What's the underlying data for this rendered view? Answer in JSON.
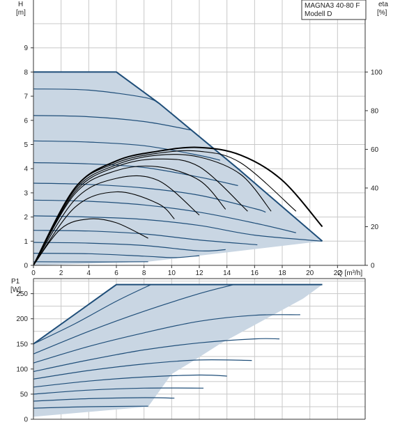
{
  "chart_data": [
    {
      "type": "line",
      "title": "MAGNA3 40-80 F",
      "subtitle": "Modell D",
      "ylabel_left": "H",
      "ylabel_left_unit": "[m]",
      "ylabel_right": "eta",
      "ylabel_right_unit": "[%]",
      "xlabel": "Q [m³/h]",
      "xlim": [
        0,
        24
      ],
      "ylim": [
        0,
        10
      ],
      "y2lim": [
        0,
        125
      ],
      "x_ticks": [
        "0",
        "2",
        "4",
        "6",
        "8",
        "10",
        "12",
        "14",
        "16",
        "18",
        "20",
        "22"
      ],
      "y_ticks": [
        "0",
        "1",
        "2",
        "3",
        "4",
        "5",
        "6",
        "7",
        "8",
        "9"
      ],
      "y2_ticks": [
        "0",
        "20",
        "40",
        "60",
        "80",
        "100"
      ],
      "grid": true,
      "envelope": {
        "x": [
          0,
          6,
          9.1,
          14.8,
          20.9,
          8.3,
          0
        ],
        "y": [
          8,
          8,
          6.7,
          4.0,
          1.0,
          0.15,
          0
        ]
      },
      "head_curves": [
        {
          "x": [
            0,
            4,
            8,
            9.1
          ],
          "y": [
            7.3,
            7.25,
            6.95,
            6.7
          ]
        },
        {
          "x": [
            0,
            4,
            8,
            11.4
          ],
          "y": [
            6.2,
            6.15,
            5.95,
            5.6
          ]
        },
        {
          "x": [
            0,
            4,
            8,
            12,
            13.5
          ],
          "y": [
            5.15,
            5.1,
            4.95,
            4.55,
            4.35
          ]
        },
        {
          "x": [
            0,
            4,
            8,
            12,
            14.8
          ],
          "y": [
            4.25,
            4.2,
            4.05,
            3.65,
            3.3
          ]
        },
        {
          "x": [
            0,
            4,
            8,
            12,
            16,
            16.8
          ],
          "y": [
            3.4,
            3.35,
            3.2,
            2.9,
            2.35,
            2.2
          ]
        },
        {
          "x": [
            0,
            4,
            8,
            12,
            16,
            19.0
          ],
          "y": [
            2.7,
            2.65,
            2.5,
            2.2,
            1.75,
            1.35
          ]
        },
        {
          "x": [
            0,
            4,
            8,
            12,
            16,
            20.9
          ],
          "y": [
            2.05,
            2.0,
            1.9,
            1.65,
            1.25,
            1.0
          ]
        },
        {
          "x": [
            0,
            4,
            8,
            12,
            16.2
          ],
          "y": [
            1.45,
            1.42,
            1.3,
            1.05,
            0.85
          ]
        },
        {
          "x": [
            0,
            4,
            8,
            12,
            13.9
          ],
          "y": [
            0.95,
            0.92,
            0.82,
            0.6,
            0.65
          ]
        },
        {
          "x": [
            0,
            4,
            8,
            10.2,
            12.0
          ],
          "y": [
            0.5,
            0.48,
            0.38,
            0.32,
            0.4
          ]
        },
        {
          "x": [
            0,
            4,
            8.3
          ],
          "y": [
            0.15,
            0.14,
            0.15
          ]
        }
      ],
      "eta_curves": [
        {
          "x": [
            0,
            2,
            4,
            6,
            8.3
          ],
          "y": [
            0,
            19,
            24,
            22,
            14
          ]
        },
        {
          "x": [
            0,
            3,
            6,
            9,
            10.2
          ],
          "y": [
            0,
            30,
            38,
            32,
            24
          ]
        },
        {
          "x": [
            0,
            3,
            6,
            9,
            12.0
          ],
          "y": [
            0,
            34,
            45,
            44,
            26
          ]
        },
        {
          "x": [
            0,
            3,
            6,
            9,
            12,
            13.9
          ],
          "y": [
            0,
            37,
            49,
            51,
            44,
            29
          ]
        },
        {
          "x": [
            0,
            3,
            6,
            9,
            12,
            15.5
          ],
          "y": [
            0,
            38,
            51,
            55,
            51,
            28
          ]
        },
        {
          "x": [
            0,
            3,
            6,
            9,
            12,
            15,
            17.2
          ],
          "y": [
            0,
            39,
            52,
            57,
            56,
            47,
            28
          ]
        },
        {
          "x": [
            0,
            3,
            6,
            9,
            12,
            15,
            19.0
          ],
          "y": [
            0,
            40,
            53,
            58,
            59,
            53,
            28
          ]
        },
        {
          "x": [
            0,
            3,
            6,
            9,
            12,
            15,
            18,
            20.9
          ],
          "y": [
            0,
            40,
            54,
            59,
            61,
            57,
            44,
            20
          ]
        }
      ]
    },
    {
      "type": "line",
      "ylabel": "P1",
      "ylabel_unit": "[W]",
      "xlim": [
        0,
        24
      ],
      "ylim": [
        0,
        280
      ],
      "y_ticks": [
        "0",
        "50",
        "100",
        "150",
        "200",
        "250"
      ],
      "grid": true,
      "envelope": {
        "x": [
          0,
          6,
          20.9,
          19.5,
          17.5,
          15.5,
          13.5,
          11.5,
          10,
          8.3,
          0
        ],
        "y": [
          150,
          268,
          268,
          240,
          210,
          180,
          150,
          115,
          90,
          25,
          5
        ]
      },
      "power_curves": [
        {
          "x": [
            0,
            3,
            6,
            8.5
          ],
          "y": [
            150,
            190,
            235,
            268
          ]
        },
        {
          "x": [
            0,
            4,
            8,
            12,
            14.5
          ],
          "y": [
            130,
            175,
            215,
            250,
            268
          ]
        },
        {
          "x": [
            0,
            4,
            8,
            12,
            16,
            19.3
          ],
          "y": [
            112,
            145,
            172,
            195,
            207,
            208
          ]
        },
        {
          "x": [
            0,
            4,
            8,
            12,
            16,
            17.8
          ],
          "y": [
            95,
            118,
            138,
            152,
            160,
            160
          ]
        },
        {
          "x": [
            0,
            4,
            8,
            12,
            15.8
          ],
          "y": [
            80,
            97,
            110,
            118,
            117
          ]
        },
        {
          "x": [
            0,
            4,
            8,
            12,
            14.0
          ],
          "y": [
            64,
            76,
            84,
            88,
            86
          ]
        },
        {
          "x": [
            0,
            4,
            8,
            12.3
          ],
          "y": [
            50,
            58,
            62,
            62
          ]
        },
        {
          "x": [
            0,
            4,
            8,
            10.2
          ],
          "y": [
            36,
            41,
            43,
            42
          ]
        },
        {
          "x": [
            0,
            4,
            8.3
          ],
          "y": [
            22,
            25,
            26
          ]
        }
      ]
    }
  ]
}
